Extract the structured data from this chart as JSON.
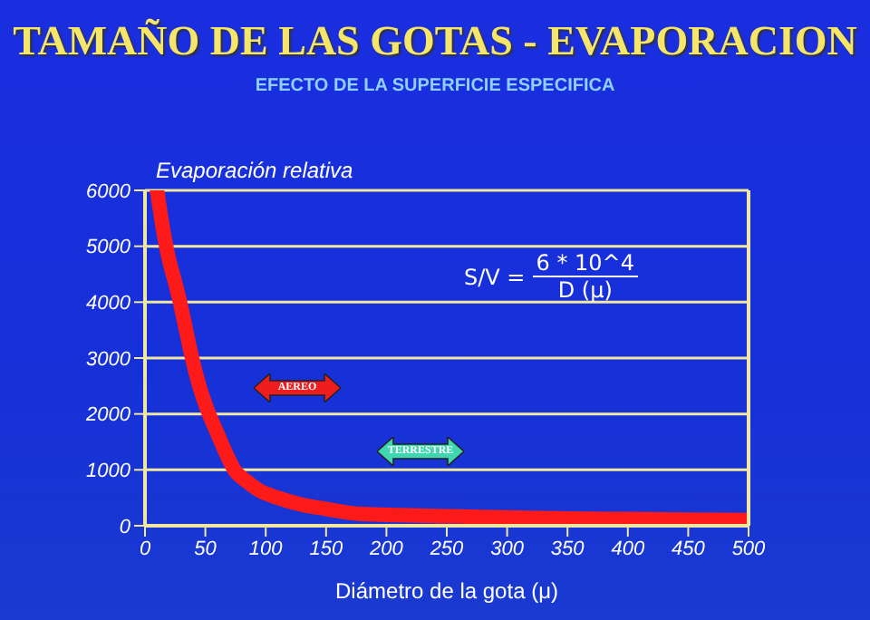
{
  "chart_data": {
    "type": "line",
    "title": "TAMAÑO DE LAS GOTAS - EVAPORACION",
    "subtitle": "EFECTO DE LA SUPERFICIE ESPECIFICA",
    "xlabel": "Diámetro de la gota (μ)",
    "ylabel": "Evaporación relativa",
    "x": [
      10,
      15,
      20,
      25,
      29,
      34,
      39,
      45,
      53,
      60,
      67,
      74,
      84,
      94,
      110,
      129,
      150,
      179,
      210,
      251,
      300,
      350,
      400,
      450,
      500
    ],
    "series": [
      {
        "color": "#ff1a1a",
        "values": [
          6000,
          5300,
          4750,
          4350,
          4000,
          3500,
          3000,
          2500,
          2000,
          1650,
          1300,
          1000,
          800,
          640,
          500,
          380,
          300,
          210,
          190,
          170,
          150,
          130,
          120,
          110,
          100
        ]
      }
    ],
    "xlim": [
      0,
      500
    ],
    "xticks": [
      0,
      50,
      100,
      150,
      200,
      250,
      300,
      350,
      400,
      450,
      500
    ],
    "ylim": [
      0,
      6000
    ],
    "yticks": [
      0,
      1000,
      2000,
      3000,
      4000,
      5000,
      6000
    ],
    "grid": "y",
    "legend": false,
    "marker": "none",
    "line_style": "solid",
    "annotations": [
      "S/V =",
      "6 * 10^4",
      "D (μ)",
      "AEREO",
      "TERRESTRE"
    ]
  }
}
